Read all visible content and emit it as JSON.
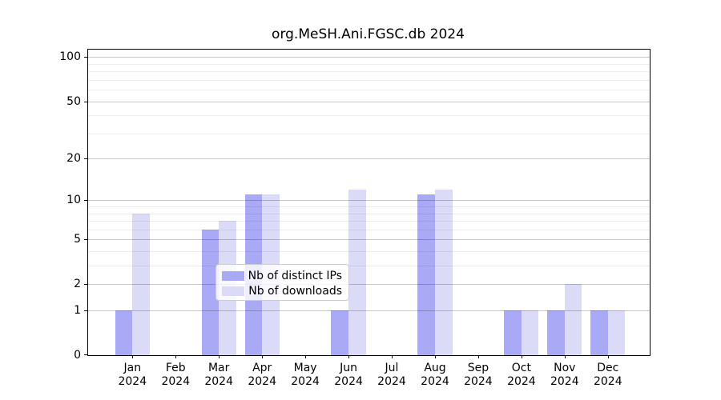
{
  "title": "org.MeSH.Ani.FGSC.db 2024",
  "chart_data": {
    "type": "bar",
    "title": "org.MeSH.Ani.FGSC.db 2024",
    "categories": [
      "Jan",
      "Feb",
      "Mar",
      "Apr",
      "May",
      "Jun",
      "Jul",
      "Aug",
      "Sep",
      "Oct",
      "Nov",
      "Dec"
    ],
    "x_tick_second_line": "2024",
    "series": [
      {
        "name": "Nb of distinct IPs",
        "color": "#a9a9f5",
        "values": [
          1,
          0,
          6,
          11,
          0,
          1,
          0,
          11,
          0,
          1,
          1,
          1
        ]
      },
      {
        "name": "Nb of downloads",
        "color": "#dbdbf8",
        "values": [
          8,
          0,
          7,
          11,
          0,
          12,
          0,
          12,
          0,
          1,
          2,
          1
        ]
      }
    ],
    "xlabel": "",
    "ylabel": "",
    "y_axis": {
      "scale": "log10(1+x)",
      "ticks": [
        0,
        1,
        2,
        5,
        10,
        20,
        50,
        100
      ],
      "minor_gridlines": [
        3,
        4,
        6,
        7,
        8,
        9,
        30,
        40,
        60,
        70,
        80,
        90
      ],
      "ymin": 0,
      "ymax": 112.3
    },
    "grid": true,
    "legend_position": "lower center"
  },
  "colors": {
    "bar_distinct_ips": "#a9a9f5",
    "bar_downloads": "#dbdbf8",
    "grid_major": "rgba(0,0,0,0.22)",
    "grid_minor": "rgba(0,0,0,0.07)",
    "axis_spine": "#000000",
    "legend_border": "#cccccc",
    "background": "#ffffff"
  }
}
